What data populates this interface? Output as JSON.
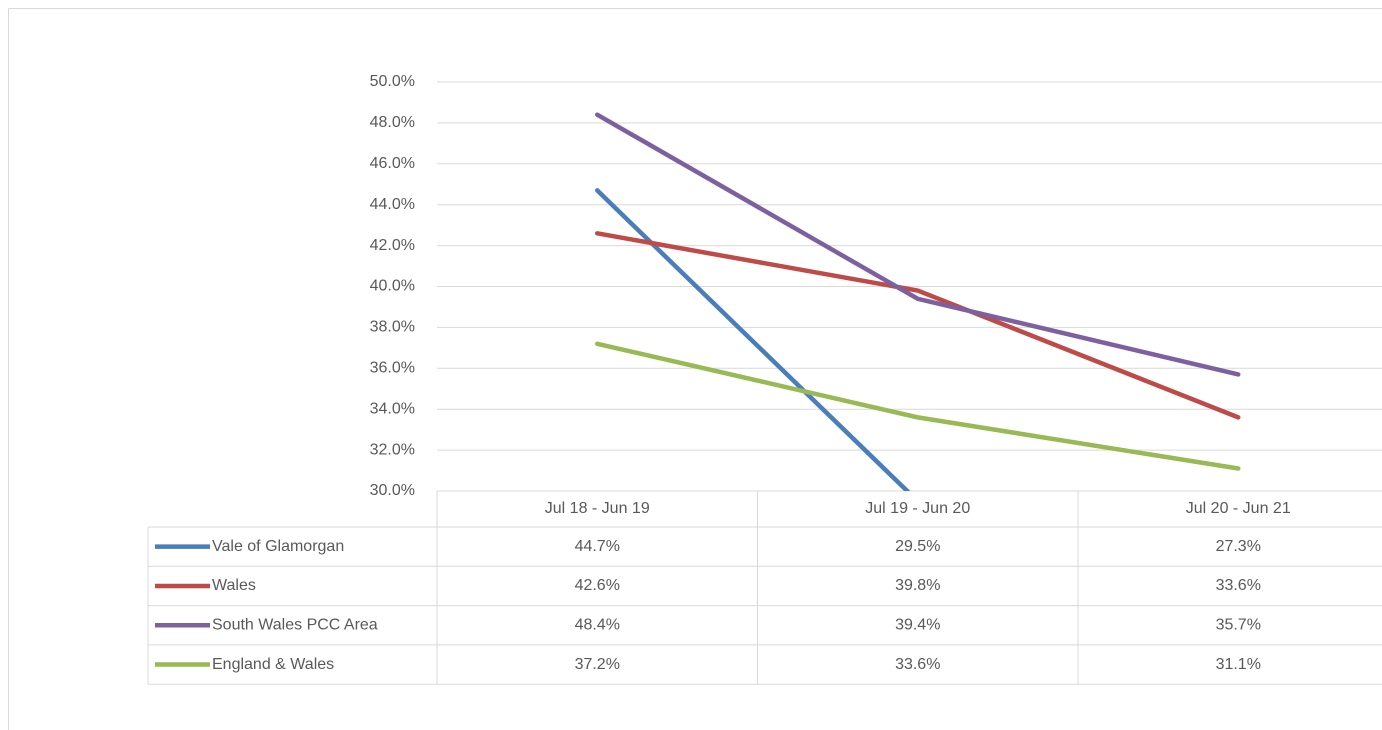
{
  "chart_data": {
    "type": "line",
    "categories": [
      "Jul 18 - Jun 19",
      "Jul 19 - Jun 20",
      "Jul 20 - Jun 21"
    ],
    "series": [
      {
        "name": "Vale of Glamorgan",
        "color": "#4a7ebb",
        "values": [
          44.7,
          29.5,
          27.3
        ],
        "value_labels": [
          "44.7%",
          "29.5%",
          "27.3%"
        ]
      },
      {
        "name": "Wales",
        "color": "#be4b48",
        "values": [
          42.6,
          39.8,
          33.6
        ],
        "value_labels": [
          "42.6%",
          "39.8%",
          "33.6%"
        ]
      },
      {
        "name": "South Wales PCC Area",
        "color": "#7d60a0",
        "values": [
          48.4,
          39.4,
          35.7
        ],
        "value_labels": [
          "48.4%",
          "39.4%",
          "35.7%"
        ]
      },
      {
        "name": "England & Wales",
        "color": "#98b954",
        "values": [
          37.2,
          33.6,
          31.1
        ],
        "value_labels": [
          "37.2%",
          "33.6%",
          "31.1%"
        ]
      }
    ],
    "ylim": [
      30,
      50
    ],
    "yticks": [
      {
        "value": 30,
        "label": "30.0%"
      },
      {
        "value": 32,
        "label": "32.0%"
      },
      {
        "value": 34,
        "label": "34.0%"
      },
      {
        "value": 36,
        "label": "36.0%"
      },
      {
        "value": 38,
        "label": "38.0%"
      },
      {
        "value": 40,
        "label": "40.0%"
      },
      {
        "value": 42,
        "label": "42.0%"
      },
      {
        "value": 44,
        "label": "44.0%"
      },
      {
        "value": 46,
        "label": "46.0%"
      },
      {
        "value": 48,
        "label": "48.0%"
      },
      {
        "value": 50,
        "label": "50.0%"
      }
    ],
    "grid": true,
    "data_table": true
  }
}
